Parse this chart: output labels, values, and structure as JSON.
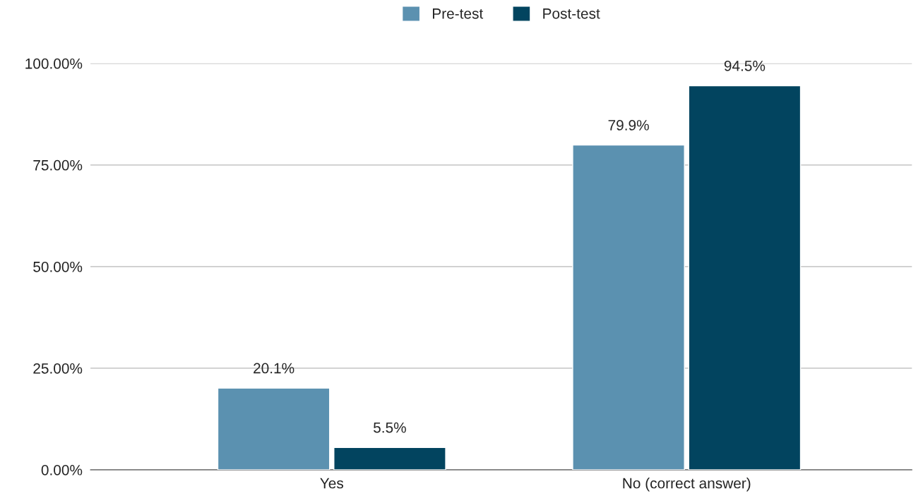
{
  "chart_data": {
    "type": "bar",
    "categories": [
      "Yes",
      "No (correct answer)"
    ],
    "series": [
      {
        "name": "Pre-test",
        "color": "#5b91b0",
        "values": [
          20.1,
          79.9
        ],
        "value_labels": [
          "20.1%",
          "79.9%"
        ]
      },
      {
        "name": "Post-test",
        "color": "#02445f",
        "values": [
          5.5,
          94.5
        ],
        "value_labels": [
          "5.5%",
          "94.5%"
        ]
      }
    ],
    "ylim": [
      0,
      100
    ],
    "yticks": [
      {
        "value": 0,
        "label": "0.00%"
      },
      {
        "value": 25,
        "label": "25.00%"
      },
      {
        "value": 50,
        "label": "50.00%"
      },
      {
        "value": 75,
        "label": "75.00%"
      },
      {
        "value": 100,
        "label": "100.00%"
      }
    ],
    "grid": "y",
    "legend": "top"
  }
}
